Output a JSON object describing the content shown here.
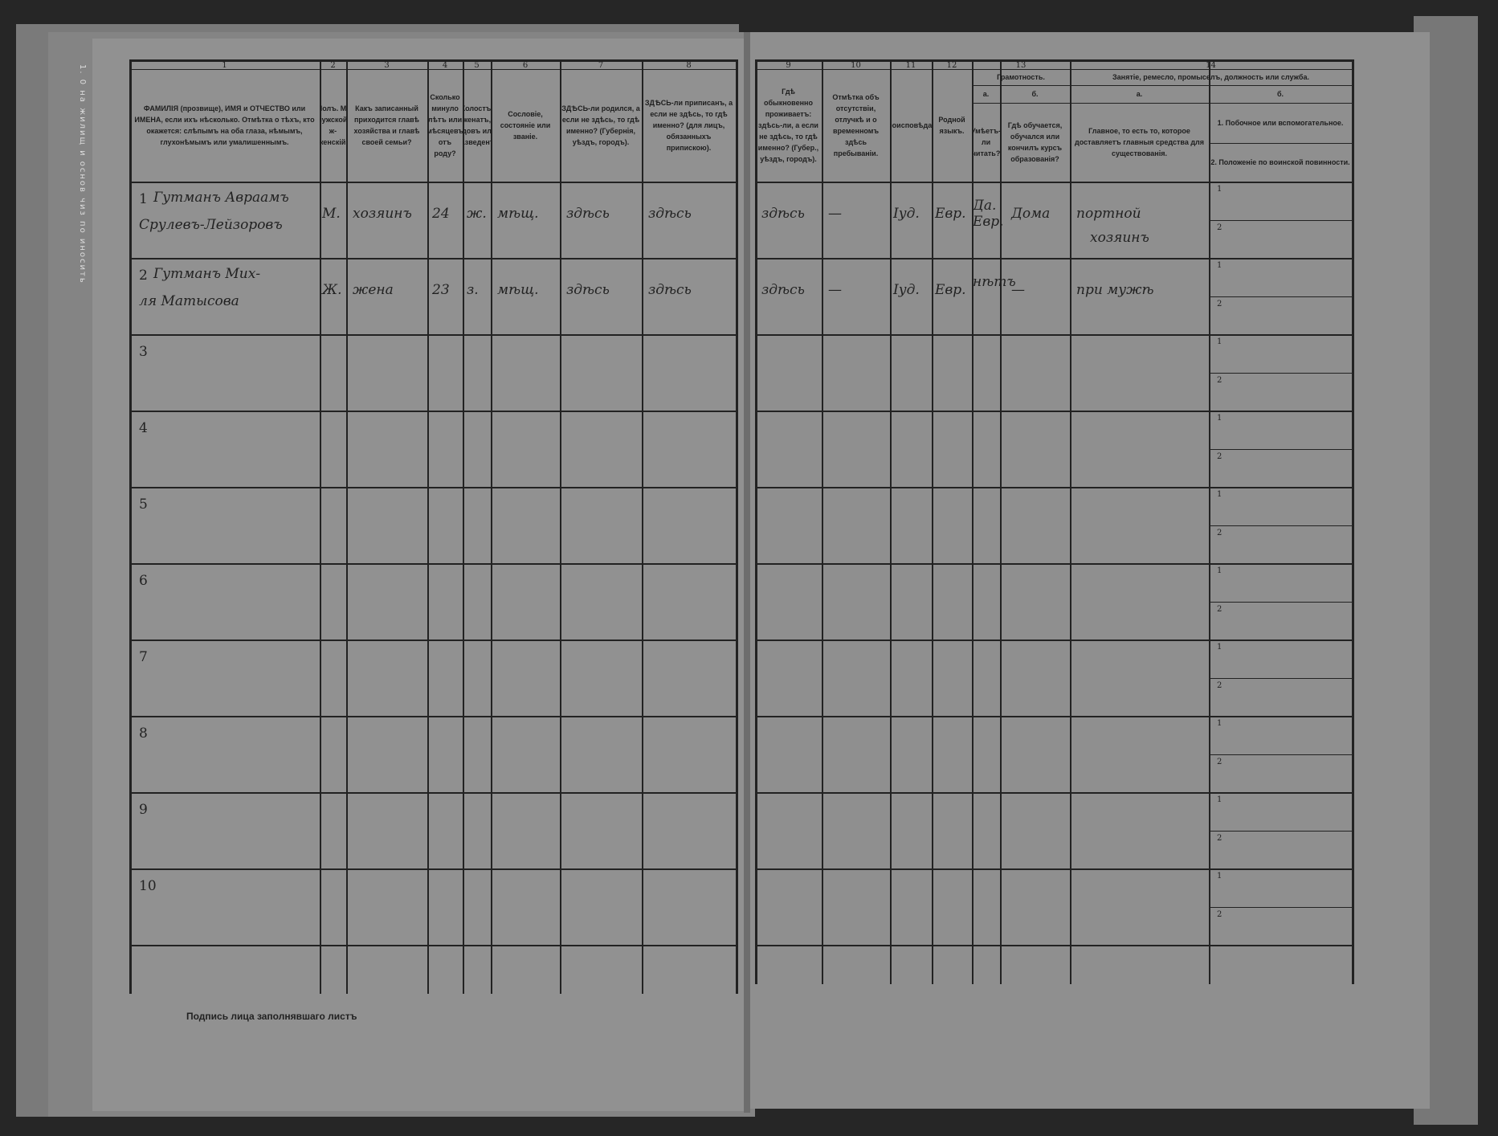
{
  "document": {
    "signature_label": "Подпись лица заполнявшаго листъ",
    "margin_text": "1. 0 на жилищ и основ чиз по иносить"
  },
  "header": {
    "col_numbers": [
      "1",
      "2",
      "3",
      "4",
      "5",
      "6",
      "7",
      "8",
      "9",
      "10",
      "11",
      "12",
      "13",
      "14"
    ],
    "col1": "ФАМИЛІЯ (прозвище), ИМЯ и ОТЧЕСТВО или ИМЕНА, если ихъ нѣсколько. Отмѣтка о тѣхъ, кто окажется: слѣпымъ на оба глаза, нѣмымъ, глухонѣмымъ или умалишеннымъ.",
    "col2": "Полъ. М-мужской. ж-женскій.",
    "col3": "Какъ записанный приходится главѣ хозяйства и главѣ своей семьи?",
    "col4": "Сколько минуло лѣтъ или мѣсяцевъ отъ роду?",
    "col5": "Холостъ, женатъ, вдовъ или разведенъ.",
    "col6": "Сословіе, состояніе или званіе.",
    "col7": "ЗДѢСЬ-ли родился, а если не здѣсь, то гдѣ именно? (Губернія, уѣздъ, городъ).",
    "col8": "ЗДѢСЬ-ли приписанъ, а если не здѣсь, то гдѣ именно? (для лицъ, обязанныхъ припискою).",
    "col9": "Гдѣ обыкновенно проживаетъ: здѣсь-ли, а если не здѣсь, то гдѣ именно? (Губер., уѣздъ, городъ).",
    "col10": "Отмѣтка объ отсутствіи, отлучкѣ и о временномъ здѣсь пребываніи.",
    "col11": "Вѣроисповѣданіе.",
    "col12": "Родной языкъ.",
    "col13": "Грамотность.",
    "col13a_letter": "а.",
    "col13a": "Умѣетъ-ли читать?",
    "col13b_letter": "б.",
    "col13b": "Гдѣ обучается, обучался или кончилъ курсъ образованія?",
    "col14": "Занятіе, ремесло, промыселъ, должность или служба.",
    "col14a_letter": "а.",
    "col14a": "Главное, то есть то, которое доставляетъ главныя средства для существованія.",
    "col14b_letter": "б.",
    "col14b1": "1. Побочное или вспомогательное.",
    "col14b2": "2. Положеніе по воинской повинности.",
    "sub1": "1",
    "sub2": "2"
  },
  "rows": [
    {
      "n": "1",
      "name1": "Гутманъ Авраамъ",
      "name2": "Срулевъ-Лейзоровъ",
      "sex": "М.",
      "relation": "хозяинъ",
      "age": "24",
      "marital": "ж.",
      "estate": "мѣщ.",
      "born": "здѣсь",
      "registered": "здѣсь",
      "resides": "здѣсь",
      "absence": "—",
      "religion": "Іуд.",
      "language": "Евр.",
      "literate": "Да. Евр.",
      "education": "Дома",
      "occupation1": "портной",
      "occupation2": "хозяинъ"
    },
    {
      "n": "2",
      "name1": "Гутманъ Мих-",
      "name2": "ля Матысова",
      "sex": "Ж.",
      "relation": "жена",
      "age": "23",
      "marital": "з.",
      "estate": "мѣщ.",
      "born": "здѣсь",
      "registered": "здѣсь",
      "resides": "здѣсь",
      "absence": "—",
      "religion": "Іуд.",
      "language": "Евр.",
      "literate": "нѣтъ",
      "education": "—",
      "occupation1": "при мужѣ",
      "occupation2": ""
    },
    {
      "n": "3"
    },
    {
      "n": "4"
    },
    {
      "n": "5"
    },
    {
      "n": "6"
    },
    {
      "n": "7"
    },
    {
      "n": "8"
    },
    {
      "n": "9"
    },
    {
      "n": "10"
    }
  ]
}
